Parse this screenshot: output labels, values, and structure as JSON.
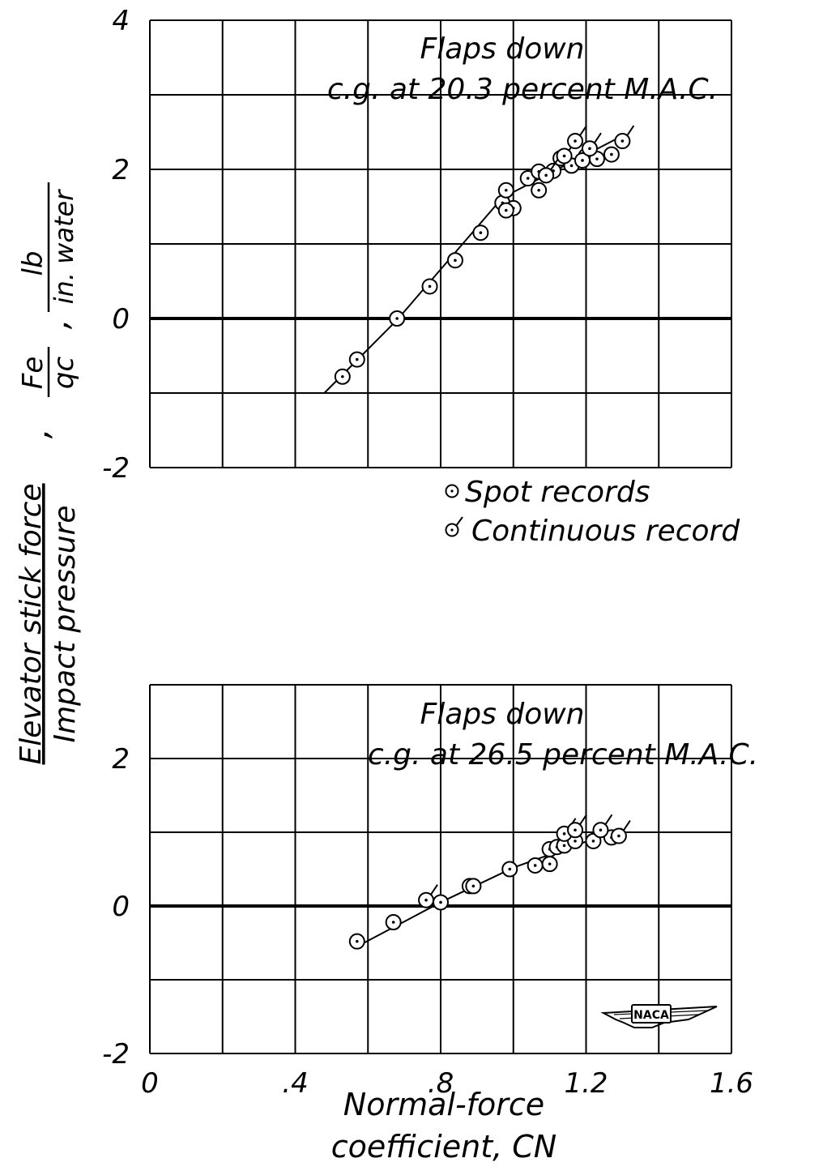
{
  "y_axis_label": {
    "numerator": "Elevator stick force",
    "denominator": "Impact pressure",
    "symbol_num": "Fe",
    "symbol_den": "qc",
    "units_num": "lb",
    "units_den": "in. water",
    "separator": ","
  },
  "x_axis_label": {
    "line1": "Normal-force",
    "line2": "coefficient, CN"
  },
  "legend": {
    "spot_label": "Spot records",
    "continuous_label": "Continuous record"
  },
  "logo_text": "NACA",
  "chart_data": [
    {
      "type": "scatter",
      "annotation_line1": "Flaps down",
      "annotation_line2": "c.g. at 20.3 percent M.A.C.",
      "xlim": [
        0,
        1.6
      ],
      "ylim": [
        -2,
        4
      ],
      "y_tick_labels": [
        "4",
        "2",
        "0",
        "-2"
      ],
      "x_tick_labels": [],
      "grid": true,
      "fair_line": [
        [
          0.48,
          -1.0
        ],
        [
          0.68,
          -0.02
        ],
        [
          0.97,
          1.62
        ],
        [
          1.3,
          2.45
        ]
      ],
      "spot_records": [
        {
          "x": 0.53,
          "y": -0.78
        },
        {
          "x": 0.57,
          "y": -0.55
        },
        {
          "x": 0.68,
          "y": 0.0
        },
        {
          "x": 0.77,
          "y": 0.43
        },
        {
          "x": 0.84,
          "y": 0.78
        },
        {
          "x": 0.91,
          "y": 1.15
        },
        {
          "x": 0.97,
          "y": 1.55
        },
        {
          "x": 0.98,
          "y": 1.72
        },
        {
          "x": 1.0,
          "y": 1.48
        },
        {
          "x": 0.98,
          "y": 1.45
        },
        {
          "x": 1.04,
          "y": 1.88
        },
        {
          "x": 1.07,
          "y": 1.72
        },
        {
          "x": 1.07,
          "y": 1.97
        },
        {
          "x": 1.11,
          "y": 1.98
        },
        {
          "x": 1.13,
          "y": 2.15
        },
        {
          "x": 1.16,
          "y": 2.05
        },
        {
          "x": 1.2,
          "y": 2.18
        },
        {
          "x": 1.23,
          "y": 2.14
        },
        {
          "x": 1.27,
          "y": 2.2
        }
      ],
      "continuous_record": [
        {
          "x": 1.09,
          "y": 1.92
        },
        {
          "x": 1.14,
          "y": 2.18
        },
        {
          "x": 1.17,
          "y": 2.38
        },
        {
          "x": 1.19,
          "y": 2.12
        },
        {
          "x": 1.21,
          "y": 2.28
        },
        {
          "x": 1.3,
          "y": 2.38
        }
      ]
    },
    {
      "type": "scatter",
      "annotation_line1": "Flaps down",
      "annotation_line2": "c.g. at 26.5 percent M.A.C.",
      "xlim": [
        0,
        1.6
      ],
      "ylim": [
        -2,
        3
      ],
      "y_tick_labels": [
        "2",
        "0",
        "-2"
      ],
      "x_tick_labels": [
        "0",
        ".4",
        ".8",
        "1.2",
        "1.6"
      ],
      "grid": true,
      "fair_line": [
        [
          0.57,
          -0.55
        ],
        [
          0.8,
          0.05
        ],
        [
          1.0,
          0.52
        ],
        [
          1.3,
          1.05
        ]
      ],
      "spot_records": [
        {
          "x": 0.57,
          "y": -0.48
        },
        {
          "x": 0.67,
          "y": -0.22
        },
        {
          "x": 0.8,
          "y": 0.05
        },
        {
          "x": 0.88,
          "y": 0.27
        },
        {
          "x": 0.89,
          "y": 0.27
        },
        {
          "x": 0.99,
          "y": 0.5
        },
        {
          "x": 1.06,
          "y": 0.55
        },
        {
          "x": 1.1,
          "y": 0.57
        },
        {
          "x": 1.1,
          "y": 0.77
        },
        {
          "x": 1.12,
          "y": 0.8
        },
        {
          "x": 1.14,
          "y": 0.82
        },
        {
          "x": 1.17,
          "y": 0.88
        },
        {
          "x": 1.22,
          "y": 0.88
        },
        {
          "x": 1.27,
          "y": 0.93
        }
      ],
      "continuous_record": [
        {
          "x": 0.76,
          "y": 0.08
        },
        {
          "x": 1.14,
          "y": 0.98
        },
        {
          "x": 1.17,
          "y": 1.03
        },
        {
          "x": 1.24,
          "y": 1.03
        },
        {
          "x": 1.29,
          "y": 0.95
        }
      ]
    }
  ]
}
